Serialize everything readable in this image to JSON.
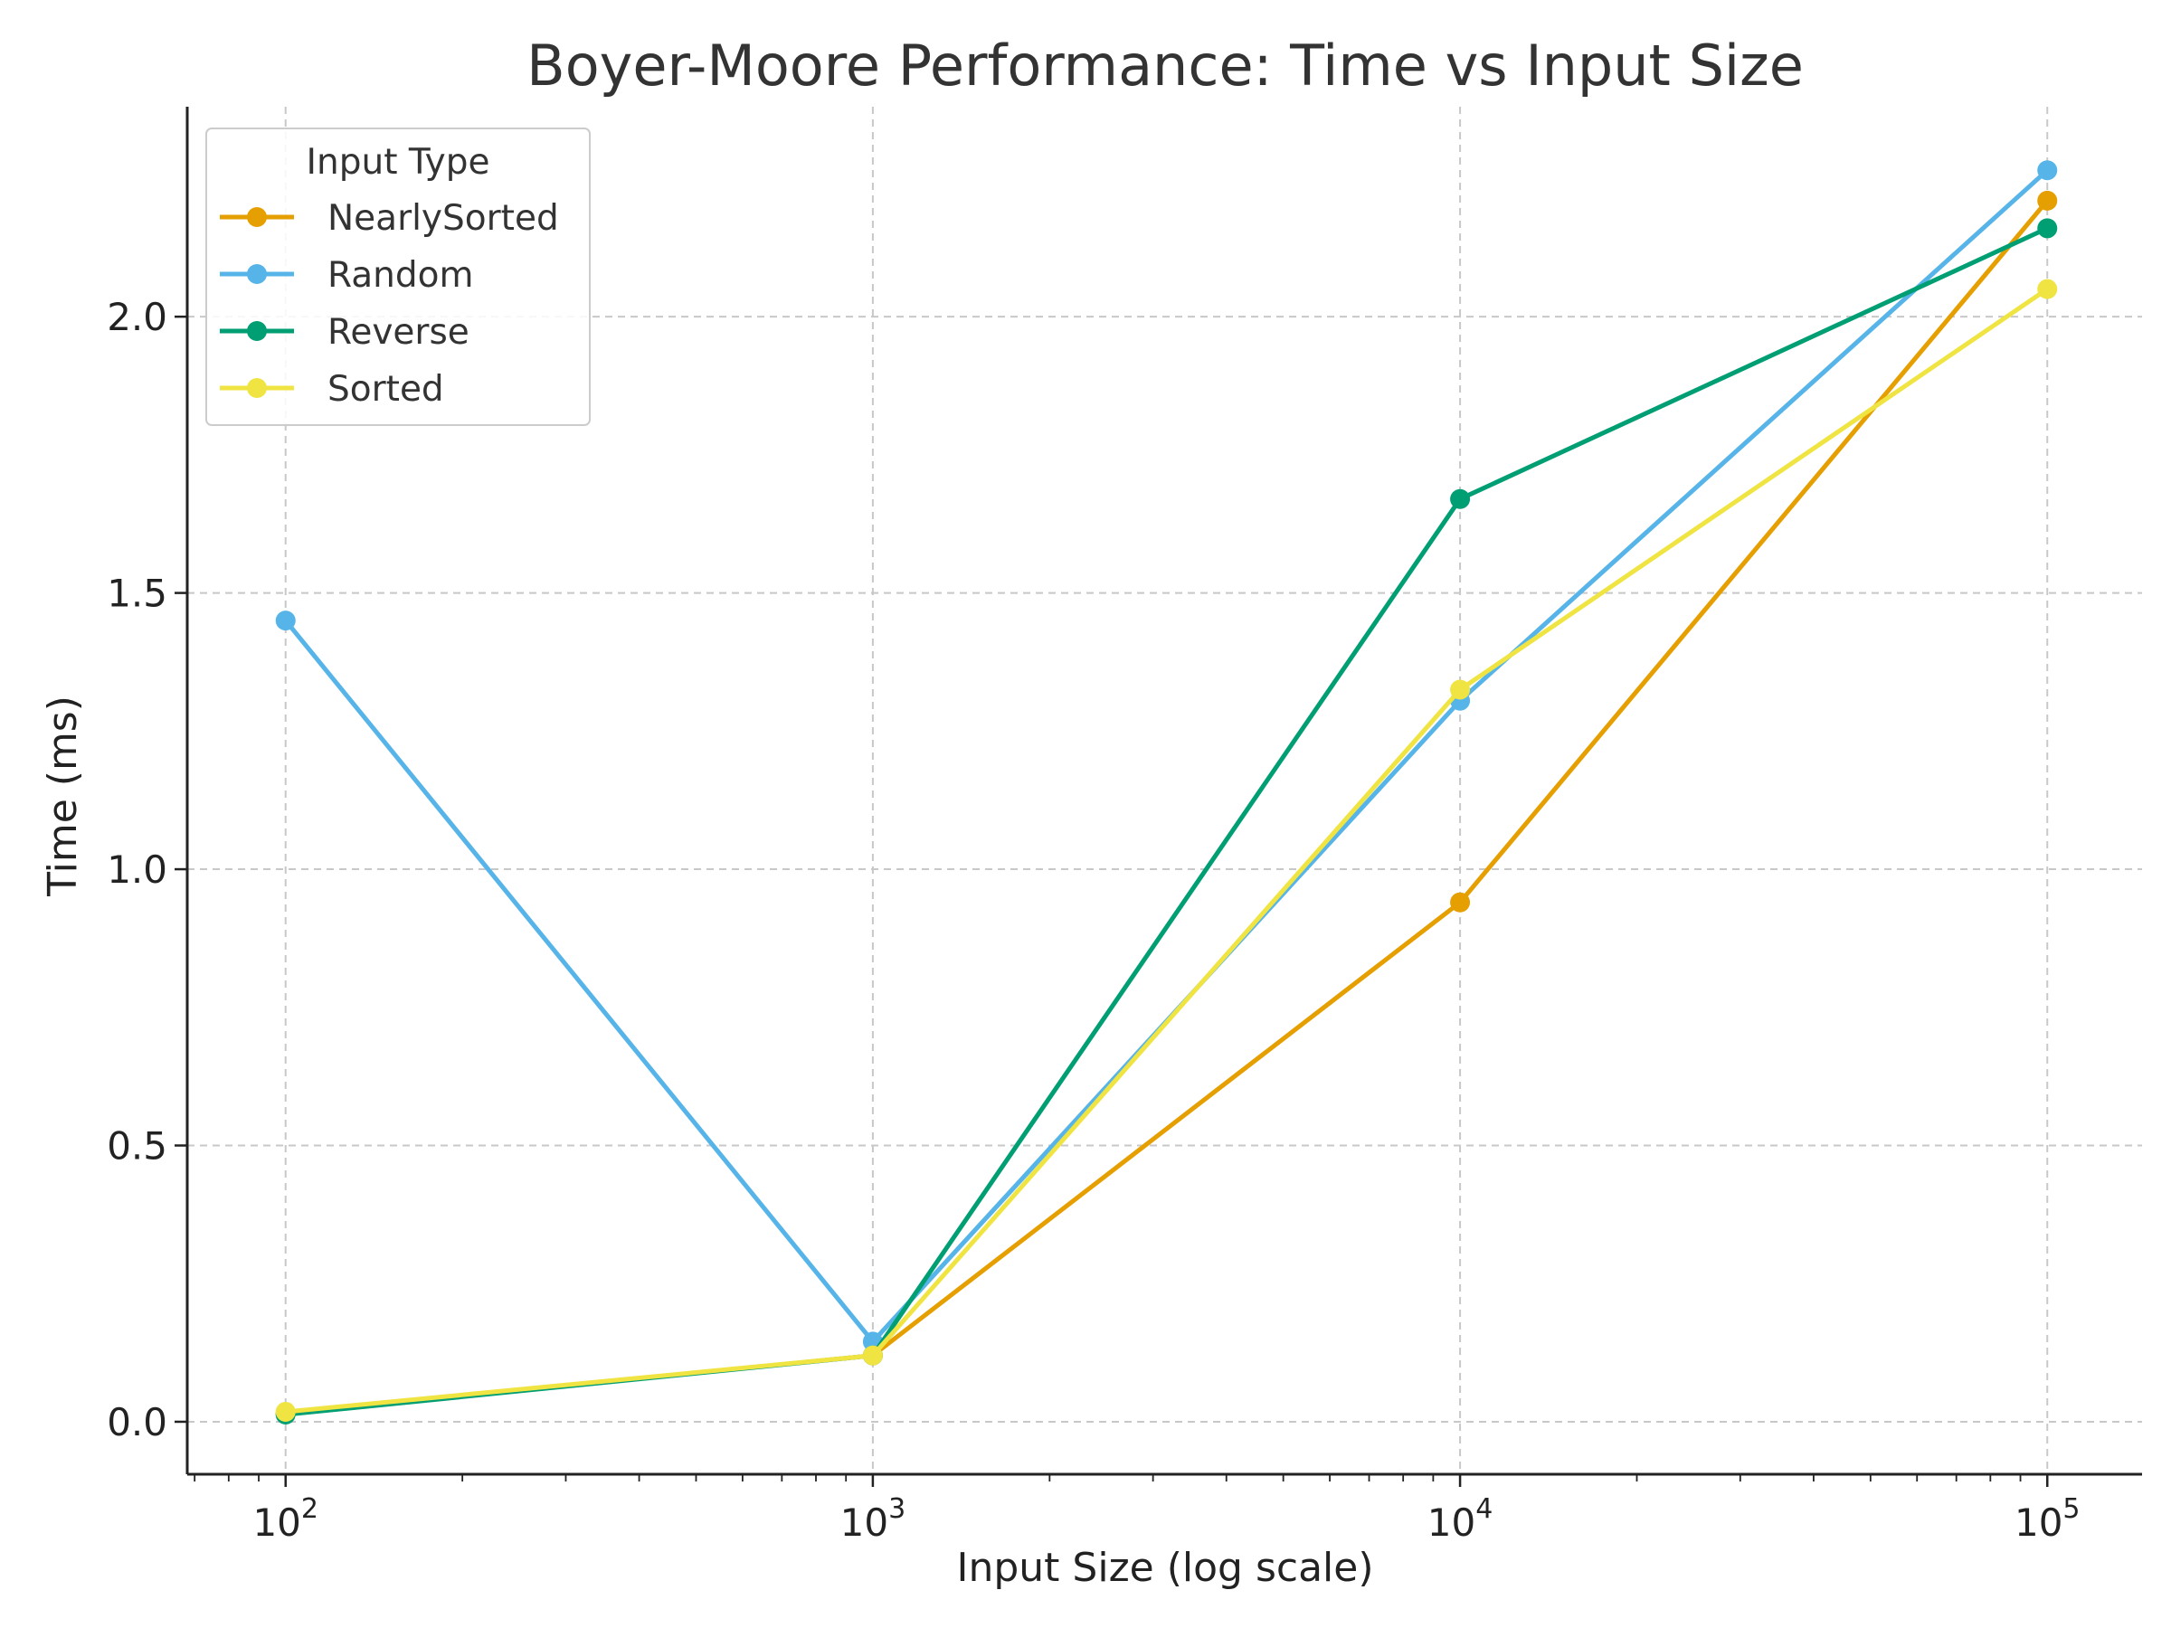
{
  "chart_data": {
    "type": "line",
    "title": "Boyer-Moore Performance: Time vs Input Size",
    "xlabel": "Input Size (log scale)",
    "ylabel": "Time (ms)",
    "x_scale": "log",
    "xlim": [
      68,
      145000
    ],
    "ylim": [
      -0.095,
      2.38
    ],
    "grid": true,
    "x": [
      100,
      1000,
      10000,
      100000
    ],
    "x_ticks": [
      {
        "value": 100,
        "base": "10",
        "exp": "2"
      },
      {
        "value": 1000,
        "base": "10",
        "exp": "3"
      },
      {
        "value": 10000,
        "base": "10",
        "exp": "4"
      },
      {
        "value": 100000,
        "base": "10",
        "exp": "5"
      }
    ],
    "y_ticks": [
      {
        "value": 0.0,
        "label": "0.0"
      },
      {
        "value": 0.5,
        "label": "0.5"
      },
      {
        "value": 1.0,
        "label": "1.0"
      },
      {
        "value": 1.5,
        "label": "1.5"
      },
      {
        "value": 2.0,
        "label": "2.0"
      }
    ],
    "legend": {
      "title": "Input Type",
      "position": "top-left"
    },
    "series": [
      {
        "name": "NearlySorted",
        "color": "#E69F00",
        "values": [
          0.015,
          0.12,
          0.94,
          2.21
        ]
      },
      {
        "name": "Random",
        "color": "#56B4E9",
        "values": [
          1.45,
          0.145,
          1.305,
          2.265
        ]
      },
      {
        "name": "Reverse",
        "color": "#009E73",
        "values": [
          0.013,
          0.12,
          1.67,
          2.16
        ]
      },
      {
        "name": "Sorted",
        "color": "#F0E442",
        "values": [
          0.018,
          0.12,
          1.325,
          2.05
        ]
      }
    ]
  }
}
